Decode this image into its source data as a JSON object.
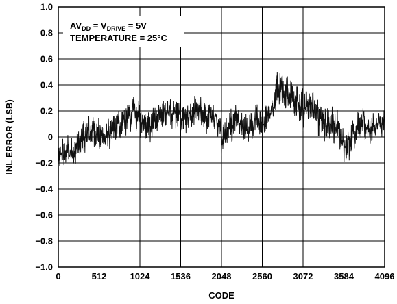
{
  "chart_data": {
    "type": "line",
    "title": "",
    "xlabel": "CODE",
    "ylabel": "INL ERROR (LSB)",
    "xlim": [
      0,
      4096
    ],
    "ylim": [
      -1.0,
      1.0
    ],
    "x_ticks": [
      0,
      512,
      1024,
      1536,
      2048,
      2560,
      3072,
      3584,
      4096
    ],
    "x_tick_labels": [
      "0",
      "512",
      "1024",
      "1536",
      "2048",
      "2560",
      "3072",
      "3584",
      "4096"
    ],
    "y_ticks": [
      1.0,
      0.8,
      0.6,
      0.4,
      0.2,
      0,
      -0.2,
      -0.4,
      -0.6,
      -0.8,
      -1.0
    ],
    "y_tick_labels": [
      "1.0",
      "0.8",
      "0.6",
      "0.4",
      "0.2",
      "0",
      "−0.2",
      "−0.4",
      "−0.6",
      "−0.8",
      "−1.0"
    ],
    "grid": true,
    "annotation": {
      "line1_main": "AV",
      "line1_sub1": "DD",
      "line1_mid": " = V",
      "line1_sub2": "DRIVE",
      "line1_end": " = 5V",
      "line2": "TEMPERATURE = 25°C"
    },
    "series": [
      {
        "x": [
          0,
          64,
          128,
          192,
          256,
          320,
          384,
          448,
          512,
          576,
          640,
          704,
          768,
          832,
          896,
          960,
          1024,
          1088,
          1152,
          1216,
          1280,
          1344,
          1408,
          1472,
          1536,
          1600,
          1664,
          1728,
          1792,
          1856,
          1920,
          1984,
          2048,
          2112,
          2176,
          2240,
          2304,
          2368,
          2432,
          2496,
          2560,
          2624,
          2688,
          2752,
          2816,
          2880,
          2944,
          3008,
          3072,
          3136,
          3200,
          3264,
          3328,
          3392,
          3456,
          3520,
          3584,
          3648,
          3712,
          3776,
          3840,
          3904,
          3968,
          4032,
          4096
        ],
        "center": [
          -0.15,
          -0.12,
          -0.1,
          -0.12,
          -0.05,
          0.0,
          0.03,
          0.05,
          0.02,
          0.0,
          0.02,
          0.07,
          0.1,
          0.12,
          0.16,
          0.2,
          0.13,
          0.12,
          0.09,
          0.13,
          0.16,
          0.2,
          0.17,
          0.2,
          0.16,
          0.13,
          0.17,
          0.2,
          0.17,
          0.15,
          0.17,
          0.13,
          0.0,
          0.05,
          0.1,
          0.15,
          0.1,
          0.05,
          0.1,
          0.14,
          0.1,
          0.15,
          0.2,
          0.38,
          0.36,
          0.32,
          0.3,
          0.25,
          0.22,
          0.25,
          0.22,
          0.15,
          0.12,
          0.1,
          0.1,
          0.05,
          -0.08,
          -0.05,
          0.05,
          0.08,
          0.1,
          0.05,
          0.08,
          0.1,
          0.08
        ],
        "spread": [
          0.08,
          0.1,
          0.1,
          0.1,
          0.1,
          0.1,
          0.1,
          0.1,
          0.1,
          0.1,
          0.1,
          0.1,
          0.1,
          0.1,
          0.1,
          0.12,
          0.1,
          0.1,
          0.1,
          0.1,
          0.1,
          0.1,
          0.1,
          0.1,
          0.1,
          0.1,
          0.1,
          0.1,
          0.1,
          0.1,
          0.1,
          0.1,
          0.1,
          0.1,
          0.1,
          0.1,
          0.1,
          0.1,
          0.1,
          0.1,
          0.1,
          0.1,
          0.1,
          0.12,
          0.12,
          0.12,
          0.12,
          0.12,
          0.12,
          0.12,
          0.12,
          0.12,
          0.12,
          0.12,
          0.12,
          0.12,
          0.1,
          0.1,
          0.1,
          0.1,
          0.1,
          0.1,
          0.1,
          0.1,
          0.1
        ]
      }
    ]
  }
}
